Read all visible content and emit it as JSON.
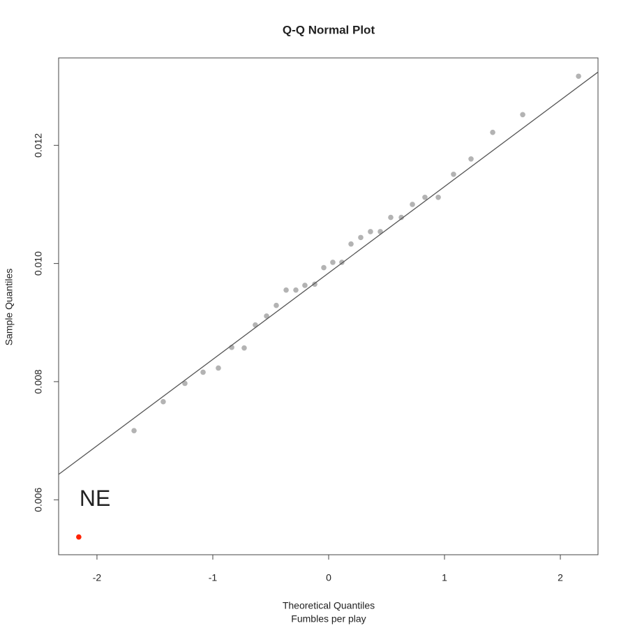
{
  "chart_data": {
    "type": "scatter",
    "title": "Q-Q Normal Plot",
    "xlabel": [
      "Theoretical Quantiles",
      "Fumbles per play"
    ],
    "ylabel": "Sample Quantiles",
    "xlim": [
      -2.331,
      2.325
    ],
    "ylim": [
      0.00507,
      0.01348
    ],
    "xticks": [
      -2,
      -1,
      0,
      1,
      2
    ],
    "yticks": [
      0.006,
      0.008,
      {
        "value": 0.01,
        "label": "0.010"
      },
      0.012
    ],
    "series": [
      {
        "mode": "points",
        "color": "#b3b3b3",
        "x": [
          -1.68,
          -1.428,
          -1.241,
          -1.084,
          -0.952,
          -0.837,
          -0.729,
          -0.633,
          -0.536,
          -0.452,
          -0.367,
          -0.283,
          -0.205,
          -0.12,
          -0.042,
          0.036,
          0.114,
          0.193,
          0.277,
          0.361,
          0.446,
          0.536,
          0.627,
          0.723,
          0.831,
          0.946,
          1.078,
          1.229,
          1.416,
          1.675,
          2.157
        ],
        "values": [
          0.00717,
          0.00766,
          0.00797,
          0.00816,
          0.00823,
          0.00858,
          0.00857,
          0.00896,
          0.00911,
          0.00929,
          0.00955,
          0.00955,
          0.00963,
          0.00965,
          0.00993,
          0.01002,
          0.01002,
          0.01033,
          0.01044,
          0.01054,
          0.01054,
          0.01078,
          0.01078,
          0.011,
          0.01112,
          0.01112,
          0.01151,
          0.01177,
          0.01222,
          0.01252,
          0.01317
        ]
      },
      {
        "mode": "points",
        "color": "#ff2200",
        "label": "NE",
        "x": [
          -2.157
        ],
        "values": [
          0.00537
        ]
      },
      {
        "mode": "line",
        "color": "#555555",
        "x": [
          -2.331,
          2.325
        ],
        "values": [
          0.00643,
          0.01324
        ]
      }
    ]
  }
}
